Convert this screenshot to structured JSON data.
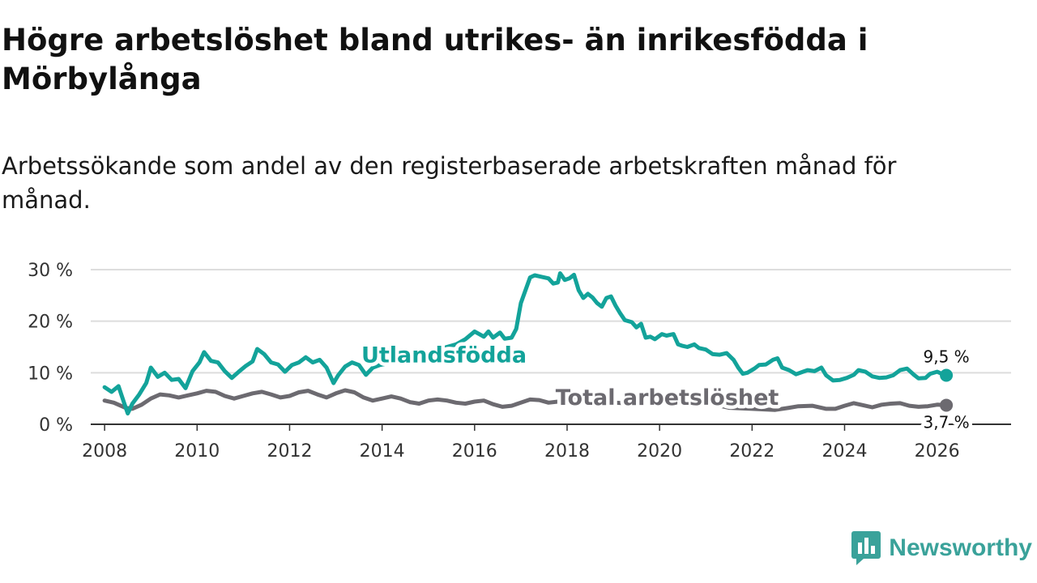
{
  "title": "Högre arbetslöshet bland utrikes- än inrikesfödda i Mörbylånga",
  "subtitle": "Arbetssökande som andel av den registerbaserade arbetskraften månad för månad.",
  "brand": {
    "name": "Newsworthy",
    "icon": "bar-chart-speech-bubble-icon"
  },
  "colors": {
    "foreign": "#13a39a",
    "total": "#6c6a70",
    "grid": "#dddddd",
    "axis": "#333333",
    "brand": "#3aa29a"
  },
  "chart_data": {
    "type": "line",
    "title": "Högre arbetslöshet bland utrikes- än inrikesfödda i Mörbylånga",
    "xlabel": "",
    "ylabel": "",
    "xlim": [
      2007.7,
      2027.6
    ],
    "ylim": [
      0,
      30
    ],
    "x_ticks": [
      2008,
      2010,
      2012,
      2014,
      2016,
      2018,
      2020,
      2022,
      2024,
      2026
    ],
    "x_tick_labels": [
      "2008",
      "2010",
      "2012",
      "2014",
      "2016",
      "2018",
      "2020",
      "2022",
      "2024",
      "2026"
    ],
    "y_ticks": [
      0,
      10,
      20,
      30
    ],
    "y_tick_labels": [
      "0 %",
      "10 %",
      "20 %",
      "30 %"
    ],
    "grid": true,
    "series": [
      {
        "name": "Utlandsfödda",
        "label": "Utlandsfödda",
        "color": "#13a39a",
        "end_label": "9,5 %",
        "points": [
          [
            2008.0,
            7.2
          ],
          [
            2008.15,
            6.3
          ],
          [
            2008.3,
            7.4
          ],
          [
            2008.42,
            4.2
          ],
          [
            2008.5,
            2.1
          ],
          [
            2008.6,
            4.0
          ],
          [
            2008.75,
            5.8
          ],
          [
            2008.9,
            8.0
          ],
          [
            2009.0,
            11.0
          ],
          [
            2009.15,
            9.2
          ],
          [
            2009.3,
            10.0
          ],
          [
            2009.45,
            8.6
          ],
          [
            2009.6,
            8.8
          ],
          [
            2009.75,
            7.0
          ],
          [
            2009.9,
            10.3
          ],
          [
            2010.05,
            12.0
          ],
          [
            2010.15,
            14.0
          ],
          [
            2010.3,
            12.3
          ],
          [
            2010.45,
            12.0
          ],
          [
            2010.6,
            10.3
          ],
          [
            2010.75,
            9.0
          ],
          [
            2010.9,
            10.2
          ],
          [
            2011.05,
            11.3
          ],
          [
            2011.2,
            12.2
          ],
          [
            2011.3,
            14.6
          ],
          [
            2011.45,
            13.6
          ],
          [
            2011.6,
            12.0
          ],
          [
            2011.75,
            11.6
          ],
          [
            2011.9,
            10.2
          ],
          [
            2012.05,
            11.5
          ],
          [
            2012.2,
            12.0
          ],
          [
            2012.35,
            13.0
          ],
          [
            2012.5,
            12.0
          ],
          [
            2012.65,
            12.5
          ],
          [
            2012.8,
            11.0
          ],
          [
            2012.95,
            8.0
          ],
          [
            2013.05,
            9.5
          ],
          [
            2013.2,
            11.2
          ],
          [
            2013.35,
            12.0
          ],
          [
            2013.5,
            11.5
          ],
          [
            2013.65,
            9.6
          ],
          [
            2013.8,
            11.0
          ],
          [
            2013.95,
            11.5
          ],
          [
            2014.5,
            12.5
          ],
          [
            2014.75,
            11.8
          ],
          [
            2014.9,
            12.5
          ],
          [
            2015.05,
            14.0
          ],
          [
            2015.2,
            14.5
          ],
          [
            2015.4,
            15.0
          ],
          [
            2015.6,
            15.5
          ],
          [
            2015.8,
            16.5
          ],
          [
            2016.0,
            18.0
          ],
          [
            2016.1,
            17.5
          ],
          [
            2016.2,
            17.0
          ],
          [
            2016.3,
            18.0
          ],
          [
            2016.4,
            16.8
          ],
          [
            2016.55,
            17.8
          ],
          [
            2016.65,
            16.6
          ],
          [
            2016.8,
            16.8
          ],
          [
            2016.9,
            18.5
          ],
          [
            2017.0,
            23.5
          ],
          [
            2017.1,
            26.0
          ],
          [
            2017.2,
            28.5
          ],
          [
            2017.3,
            28.9
          ],
          [
            2017.45,
            28.6
          ],
          [
            2017.6,
            28.3
          ],
          [
            2017.7,
            27.3
          ],
          [
            2017.8,
            27.5
          ],
          [
            2017.85,
            29.3
          ],
          [
            2017.95,
            28.0
          ],
          [
            2018.05,
            28.3
          ],
          [
            2018.15,
            29.0
          ],
          [
            2018.25,
            26.0
          ],
          [
            2018.35,
            24.5
          ],
          [
            2018.45,
            25.3
          ],
          [
            2018.55,
            24.6
          ],
          [
            2018.65,
            23.5
          ],
          [
            2018.75,
            22.8
          ],
          [
            2018.85,
            24.5
          ],
          [
            2018.95,
            24.8
          ],
          [
            2019.05,
            23.0
          ],
          [
            2019.15,
            21.5
          ],
          [
            2019.25,
            20.2
          ],
          [
            2019.4,
            19.8
          ],
          [
            2019.5,
            18.8
          ],
          [
            2019.6,
            19.5
          ],
          [
            2019.7,
            16.8
          ],
          [
            2019.8,
            17.0
          ],
          [
            2019.9,
            16.5
          ],
          [
            2020.05,
            17.5
          ],
          [
            2020.15,
            17.2
          ],
          [
            2020.3,
            17.5
          ],
          [
            2020.4,
            15.5
          ],
          [
            2020.5,
            15.2
          ],
          [
            2020.6,
            15.0
          ],
          [
            2020.75,
            15.5
          ],
          [
            2020.85,
            14.8
          ],
          [
            2021.0,
            14.5
          ],
          [
            2021.15,
            13.6
          ],
          [
            2021.3,
            13.5
          ],
          [
            2021.45,
            13.8
          ],
          [
            2021.6,
            12.5
          ],
          [
            2021.7,
            11.0
          ],
          [
            2021.8,
            9.8
          ],
          [
            2021.9,
            10.0
          ],
          [
            2022.05,
            10.8
          ],
          [
            2022.15,
            11.5
          ],
          [
            2022.3,
            11.6
          ],
          [
            2022.45,
            12.5
          ],
          [
            2022.55,
            12.8
          ],
          [
            2022.65,
            11.0
          ],
          [
            2022.8,
            10.5
          ],
          [
            2022.95,
            9.7
          ],
          [
            2023.1,
            10.2
          ],
          [
            2023.2,
            10.5
          ],
          [
            2023.35,
            10.3
          ],
          [
            2023.5,
            11.0
          ],
          [
            2023.6,
            9.5
          ],
          [
            2023.75,
            8.5
          ],
          [
            2023.9,
            8.6
          ],
          [
            2024.05,
            9.0
          ],
          [
            2024.2,
            9.6
          ],
          [
            2024.3,
            10.5
          ],
          [
            2024.45,
            10.2
          ],
          [
            2024.6,
            9.3
          ],
          [
            2024.75,
            9.0
          ],
          [
            2024.9,
            9.1
          ],
          [
            2025.05,
            9.5
          ],
          [
            2025.2,
            10.5
          ],
          [
            2025.35,
            10.8
          ],
          [
            2025.5,
            9.6
          ],
          [
            2025.6,
            8.9
          ],
          [
            2025.75,
            9.0
          ],
          [
            2025.85,
            9.8
          ],
          [
            2026.0,
            10.2
          ],
          [
            2026.1,
            9.8
          ],
          [
            2026.2,
            9.5
          ]
        ]
      },
      {
        "name": "Total arbetslöshet",
        "label": "Total arbetslöshet",
        "color": "#6c6a70",
        "end_label": "3,7 %",
        "points": [
          [
            2008.0,
            4.6
          ],
          [
            2008.2,
            4.2
          ],
          [
            2008.45,
            3.2
          ],
          [
            2008.6,
            3.0
          ],
          [
            2008.8,
            3.8
          ],
          [
            2009.0,
            5.0
          ],
          [
            2009.2,
            5.8
          ],
          [
            2009.4,
            5.6
          ],
          [
            2009.6,
            5.2
          ],
          [
            2009.8,
            5.6
          ],
          [
            2010.0,
            6.0
          ],
          [
            2010.2,
            6.5
          ],
          [
            2010.4,
            6.3
          ],
          [
            2010.6,
            5.5
          ],
          [
            2010.8,
            5.0
          ],
          [
            2011.0,
            5.5
          ],
          [
            2011.2,
            6.0
          ],
          [
            2011.4,
            6.3
          ],
          [
            2011.6,
            5.8
          ],
          [
            2011.8,
            5.2
          ],
          [
            2012.0,
            5.5
          ],
          [
            2012.2,
            6.2
          ],
          [
            2012.4,
            6.5
          ],
          [
            2012.6,
            5.8
          ],
          [
            2012.8,
            5.2
          ],
          [
            2013.0,
            6.0
          ],
          [
            2013.2,
            6.6
          ],
          [
            2013.4,
            6.2
          ],
          [
            2013.6,
            5.2
          ],
          [
            2013.8,
            4.6
          ],
          [
            2014.0,
            5.0
          ],
          [
            2014.2,
            5.4
          ],
          [
            2014.4,
            5.0
          ],
          [
            2014.6,
            4.3
          ],
          [
            2014.8,
            4.0
          ],
          [
            2015.0,
            4.6
          ],
          [
            2015.2,
            4.8
          ],
          [
            2015.4,
            4.6
          ],
          [
            2015.6,
            4.2
          ],
          [
            2015.8,
            4.0
          ],
          [
            2016.0,
            4.4
          ],
          [
            2016.2,
            4.6
          ],
          [
            2016.4,
            3.9
          ],
          [
            2016.6,
            3.4
          ],
          [
            2016.8,
            3.6
          ],
          [
            2017.0,
            4.2
          ],
          [
            2017.2,
            4.8
          ],
          [
            2017.4,
            4.7
          ],
          [
            2017.6,
            4.2
          ],
          [
            2017.8,
            4.4
          ],
          [
            2018.0,
            4.7
          ],
          [
            2018.5,
            4.5
          ],
          [
            2019.0,
            4.2
          ],
          [
            2019.5,
            4.0
          ],
          [
            2020.0,
            4.5
          ],
          [
            2020.5,
            4.6
          ],
          [
            2021.0,
            4.2
          ],
          [
            2021.5,
            3.2
          ],
          [
            2022.0,
            3.0
          ],
          [
            2022.5,
            2.8
          ],
          [
            2022.8,
            3.2
          ],
          [
            2023.0,
            3.5
          ],
          [
            2023.3,
            3.6
          ],
          [
            2023.6,
            3.0
          ],
          [
            2023.8,
            3.0
          ],
          [
            2024.0,
            3.6
          ],
          [
            2024.2,
            4.1
          ],
          [
            2024.4,
            3.7
          ],
          [
            2024.6,
            3.3
          ],
          [
            2024.8,
            3.8
          ],
          [
            2025.0,
            4.0
          ],
          [
            2025.2,
            4.1
          ],
          [
            2025.4,
            3.6
          ],
          [
            2025.6,
            3.4
          ],
          [
            2025.8,
            3.5
          ],
          [
            2026.0,
            3.8
          ],
          [
            2026.2,
            3.7
          ]
        ]
      }
    ]
  }
}
